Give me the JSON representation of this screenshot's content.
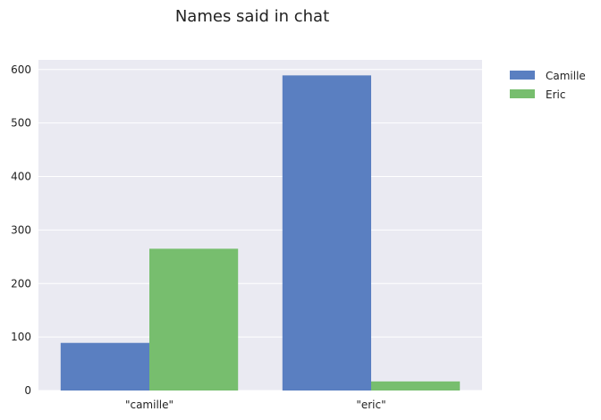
{
  "chart_data": {
    "type": "bar",
    "title": "Names said in chat",
    "xlabel": "",
    "ylabel": "",
    "categories": [
      "\"camille\"",
      "\"eric\""
    ],
    "series": [
      {
        "name": "Camille",
        "color": "#5a7fc1",
        "values": [
          89,
          589
        ]
      },
      {
        "name": "Eric",
        "color": "#77be6e",
        "values": [
          265,
          17
        ]
      }
    ],
    "ylim": [
      0,
      618
    ],
    "yticks": [
      0,
      100,
      200,
      300,
      400,
      500,
      600
    ],
    "grid": true,
    "legend_position": "outside-top-right",
    "style": {
      "plot_background": "#eaeaf2",
      "grid_color": "#ffffff"
    }
  }
}
